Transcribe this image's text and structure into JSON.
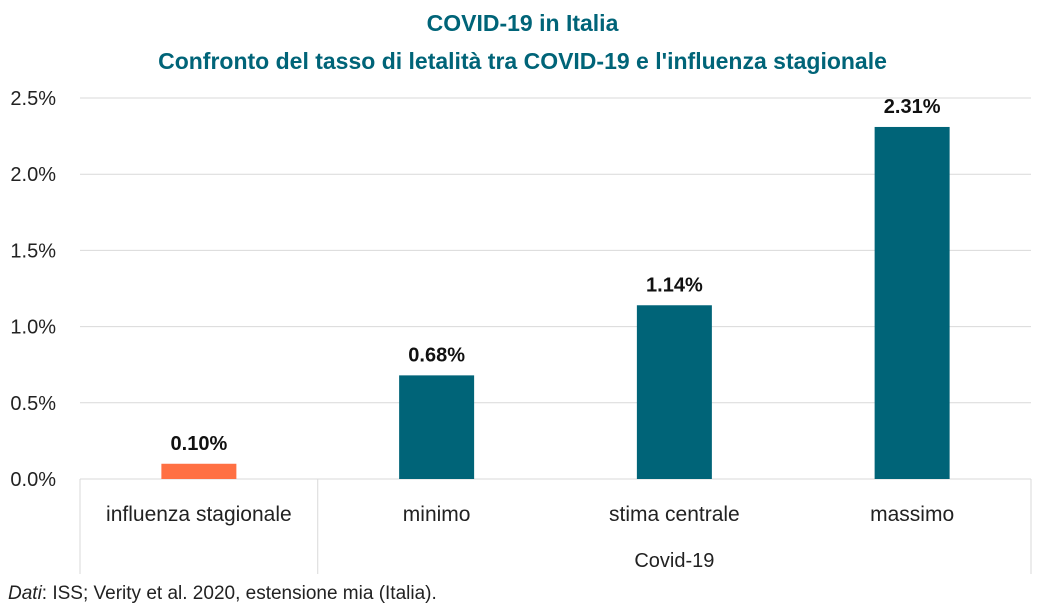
{
  "chart_data": {
    "type": "bar",
    "title": "COVID-19 in Italia",
    "subtitle": "Confronto del tasso di letalità tra COVID-19 e l'influenza stagionale",
    "categories": [
      "influenza stagionale",
      "minimo",
      "stima centrale",
      "massimo"
    ],
    "values": [
      0.1,
      0.68,
      1.14,
      2.31
    ],
    "value_labels": [
      "0.10%",
      "0.68%",
      "1.14%",
      "2.31%"
    ],
    "group_label": "Covid-19",
    "y_ticks": [
      "0.0%",
      "0.5%",
      "1.0%",
      "1.5%",
      "2.0%",
      "2.5%"
    ],
    "y_tick_values": [
      0,
      0.5,
      1.0,
      1.5,
      2.0,
      2.5
    ],
    "ylim": [
      0,
      2.5
    ],
    "grid": true,
    "colors": [
      "#ff7043",
      "#006478",
      "#006478",
      "#006478"
    ]
  },
  "source": {
    "prefix": "Dati",
    "text": ": ISS; Verity et al. 2020, estensione mia (Italia)."
  }
}
